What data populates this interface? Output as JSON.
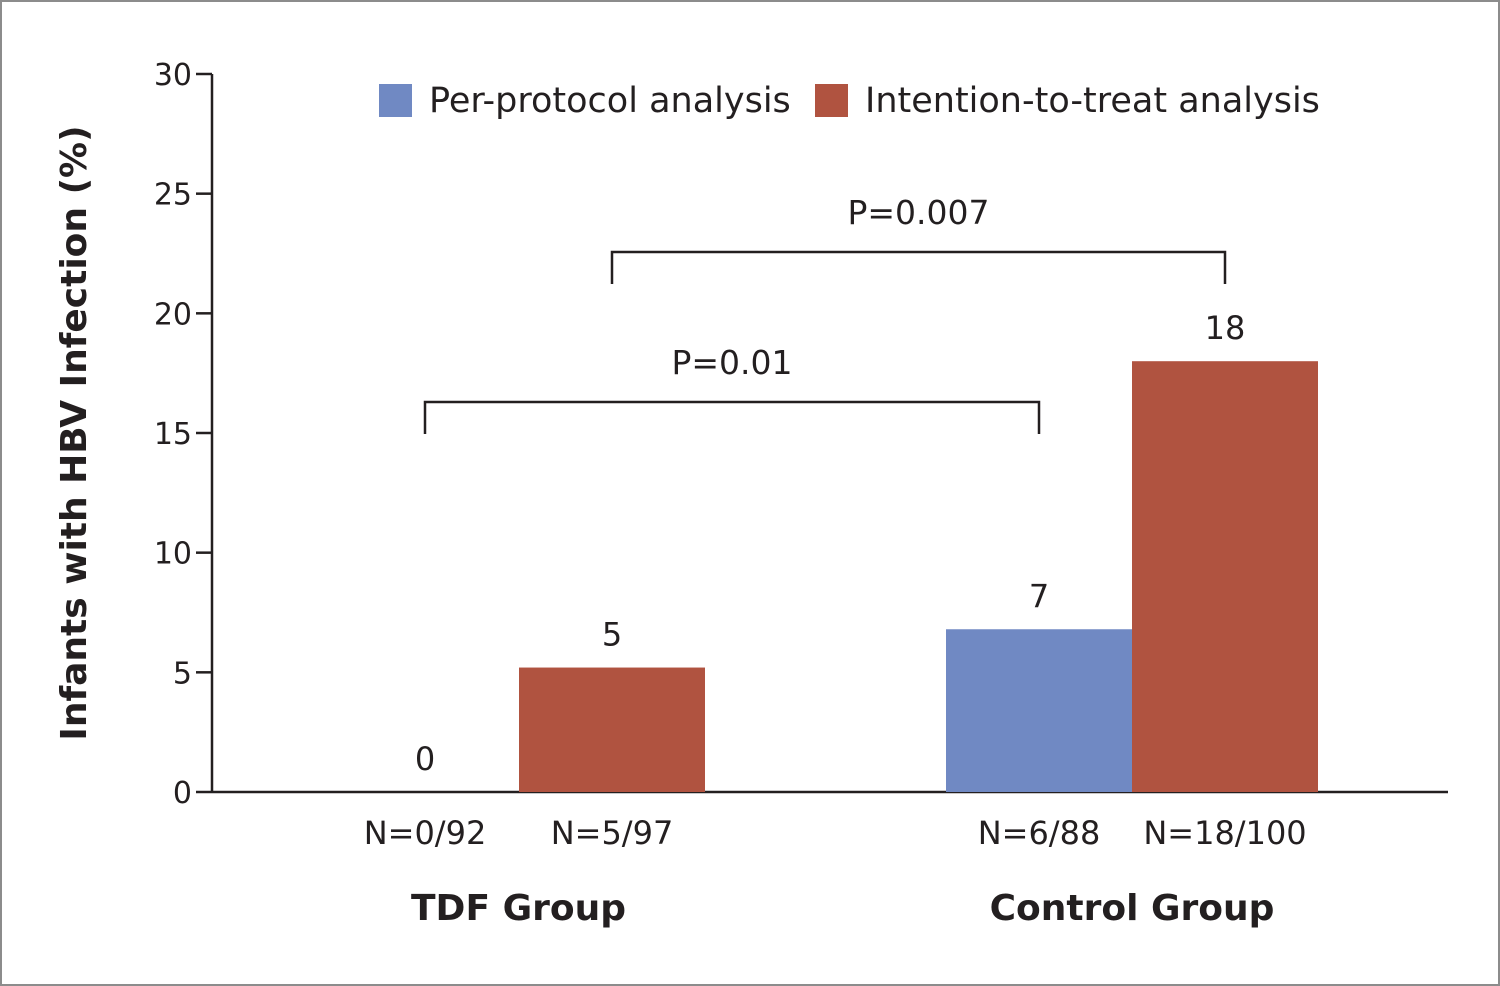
{
  "chart_data": {
    "type": "bar",
    "ylabel": "Infants with HBV Infection (%)",
    "xlabel": "",
    "ylim": [
      0,
      30
    ],
    "yticks": [
      0,
      5,
      10,
      15,
      20,
      25,
      30
    ],
    "legend_position": "top",
    "series": [
      {
        "name": "Per-protocol analysis",
        "color": "#7089c3"
      },
      {
        "name": "Intention-to-treat analysis",
        "color": "#b05340"
      }
    ],
    "groups": [
      {
        "name": "TDF Group",
        "bars": [
          {
            "series": 0,
            "value": 0,
            "value_label": "0",
            "n_label": "N=0/92"
          },
          {
            "series": 1,
            "value": 5.2,
            "value_label": "5",
            "n_label": "N=5/97"
          }
        ]
      },
      {
        "name": "Control Group",
        "bars": [
          {
            "series": 0,
            "value": 6.8,
            "value_label": "7",
            "n_label": "N=6/88"
          },
          {
            "series": 1,
            "value": 18,
            "value_label": "18",
            "n_label": "N=18/100"
          }
        ]
      }
    ],
    "annotations": [
      {
        "text": "P=0.007",
        "from": [
          0,
          1
        ],
        "to": [
          1,
          1
        ]
      },
      {
        "text": "P=0.01",
        "from": [
          0,
          0
        ],
        "to": [
          1,
          0
        ]
      }
    ]
  }
}
